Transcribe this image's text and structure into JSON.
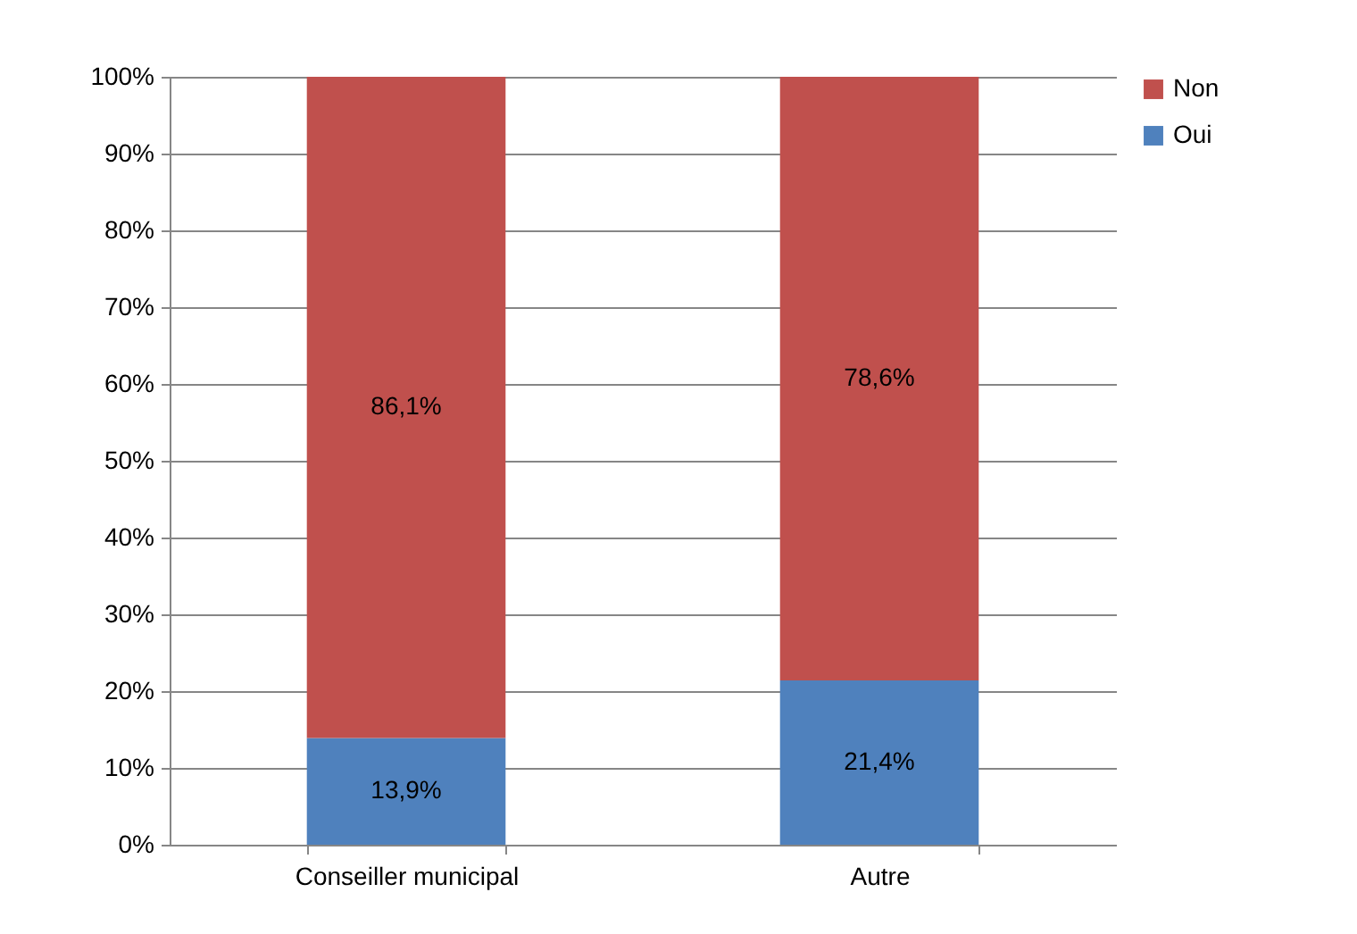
{
  "chart_data": {
    "type": "bar",
    "stacked": true,
    "categories": [
      "Conseiller municipal",
      "Autre"
    ],
    "series": [
      {
        "name": "Oui",
        "color": "#4f81bd",
        "values": [
          13.9,
          21.4
        ],
        "value_labels": [
          "13,9%",
          "21,4%"
        ]
      },
      {
        "name": "Non",
        "color": "#c0504d",
        "values": [
          86.1,
          78.6
        ],
        "value_labels": [
          "86,1%",
          "78,6%"
        ]
      }
    ],
    "ylim": [
      0,
      100
    ],
    "yticks": [
      {
        "value": 0,
        "label": "0%"
      },
      {
        "value": 10,
        "label": "10%"
      },
      {
        "value": 20,
        "label": "20%"
      },
      {
        "value": 30,
        "label": "30%"
      },
      {
        "value": 40,
        "label": "40%"
      },
      {
        "value": 50,
        "label": "50%"
      },
      {
        "value": 60,
        "label": "60%"
      },
      {
        "value": 70,
        "label": "70%"
      },
      {
        "value": 80,
        "label": "80%"
      },
      {
        "value": 90,
        "label": "90%"
      },
      {
        "value": 100,
        "label": "100%"
      }
    ],
    "grid": "y",
    "legend": "right"
  }
}
